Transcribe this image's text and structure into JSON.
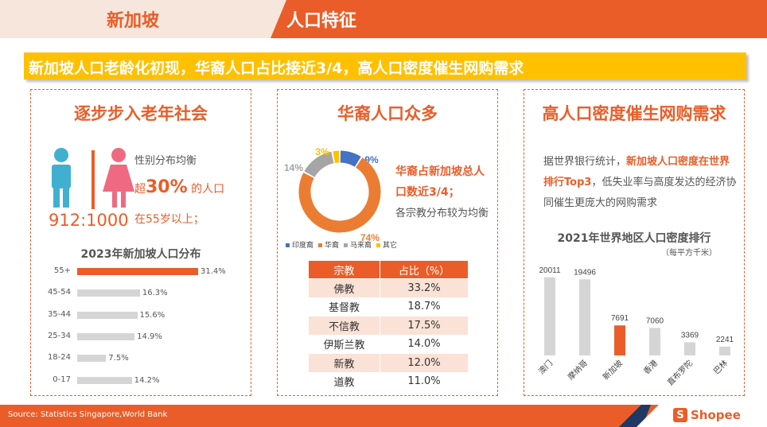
{
  "header": {
    "country": "新加坡",
    "topic": "人口特征"
  },
  "banner": "新加坡人口老龄化初现，华裔人口占比接近3/4，高人口密度催生网购需求",
  "panel_aging": {
    "title": "逐步步入老年社会",
    "ratio": "912:1000",
    "gender_text": "性别分布均衡",
    "over_prefix": "超",
    "over_percent": "30%",
    "over_suffix": "的人口",
    "age_text": "在55岁以上；",
    "colors": {
      "male": "#40b0d0",
      "female": "#ef6a80"
    }
  },
  "panel_ethnic": {
    "title": "华裔人口众多",
    "text_main": "华裔占新加坡总人口数近3/4；",
    "text_sub": "各宗教分布较为均衡",
    "table_headers": [
      "宗教",
      "占比（%）"
    ],
    "table_rows": [
      [
        "佛教",
        "33.2%"
      ],
      [
        "基督教",
        "18.7%"
      ],
      [
        "不信教",
        "17.5%"
      ],
      [
        "伊斯兰教",
        "14.0%"
      ],
      [
        "新教",
        "12.0%"
      ],
      [
        "道教",
        "11.0%"
      ]
    ]
  },
  "panel_density": {
    "title": "高人口密度催生网购需求",
    "text_a": "据世界银行统计，",
    "text_b": "新加坡人口密度在世界排行Top3",
    "text_c": "，低失业率与高度发达的经济协同催生更庞大的网购需求"
  },
  "footer": {
    "source": "Source: Statistics Singapore,World Bank",
    "logo_glyph": "S",
    "logo_text": "Shopee"
  },
  "colors": {
    "accent": "#ea5d28",
    "yellow": "#ffc000",
    "blue": "#4472c4",
    "gray": "#a5a5a5",
    "bar_gray": "#d5d5d5"
  },
  "chart_data": [
    {
      "type": "bar",
      "title": "2023年新加坡人口分布",
      "categories": [
        "55+",
        "45-54",
        "35-44",
        "25-34",
        "18-24",
        "0-17"
      ],
      "values": [
        31.4,
        16.3,
        15.6,
        14.9,
        7.5,
        14.2
      ],
      "value_labels": [
        "31.4%",
        "16.3%",
        "15.6%",
        "14.9%",
        "7.5%",
        "14.2%"
      ],
      "orientation": "horizontal",
      "highlight": "55+"
    },
    {
      "type": "pie",
      "categories": [
        "印度裔",
        "华裔",
        "马来裔",
        "其它"
      ],
      "values": [
        9,
        74,
        14,
        3
      ],
      "value_labels": [
        "9%",
        "74%",
        "14%",
        "3%"
      ],
      "colors": [
        "#4472c4",
        "#ea7d32",
        "#a5a5a5",
        "#ffc000"
      ],
      "legend_position": "bottom"
    },
    {
      "type": "bar",
      "title": "2021年世界地区人口密度排行",
      "subtitle": "（每平方千米）",
      "categories": [
        "澳门",
        "摩纳哥",
        "新加坡",
        "香港",
        "直布罗陀",
        "巴林"
      ],
      "values": [
        20011,
        19496,
        7691,
        7060,
        3369,
        2241
      ],
      "highlight": "新加坡",
      "ylim": [
        0,
        22000
      ]
    }
  ]
}
